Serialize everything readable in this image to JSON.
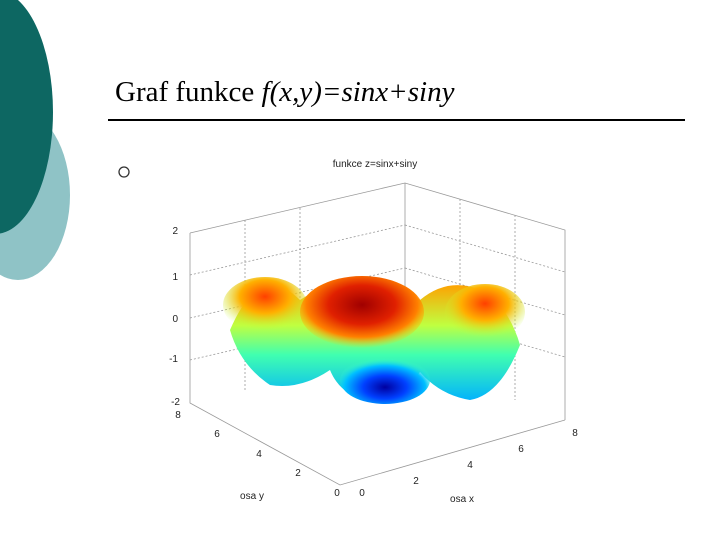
{
  "slide": {
    "title": "Graf funkce",
    "title_formula": "f(x,y)=sinx+siny"
  },
  "figure": {
    "title": "funkce z=sinx+siny",
    "z_ticks": [
      "2",
      "1",
      "0",
      "-1",
      "-2"
    ],
    "y_ticks": [
      "8",
      "6",
      "4",
      "2",
      "0"
    ],
    "x_ticks": [
      "0",
      "2",
      "4",
      "6",
      "8"
    ],
    "y_label": "osa y",
    "x_label": "osa x"
  }
}
